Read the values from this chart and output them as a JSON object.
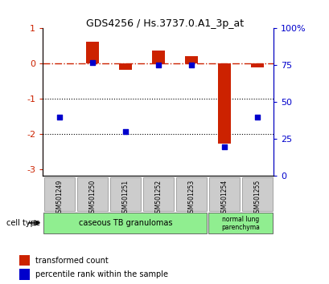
{
  "title": "GDS4256 / Hs.3737.0.A1_3p_at",
  "samples": [
    "GSM501249",
    "GSM501250",
    "GSM501251",
    "GSM501252",
    "GSM501253",
    "GSM501254",
    "GSM501255"
  ],
  "red_values": [
    0.0,
    0.62,
    -0.18,
    0.38,
    0.22,
    -2.28,
    -0.1
  ],
  "blue_values": [
    40,
    77,
    30,
    75,
    75,
    20,
    40
  ],
  "ylim_left": [
    -3.2,
    1.0
  ],
  "ylim_right": [
    0,
    100
  ],
  "left_ticks": [
    1,
    0,
    -1,
    -2,
    -3
  ],
  "right_ticks": [
    100,
    75,
    50,
    25,
    0
  ],
  "right_tick_labels": [
    "100%",
    "75",
    "50",
    "25",
    "0"
  ],
  "dotted_lines": [
    -1,
    -2
  ],
  "bar_color": "#cc2200",
  "dot_color": "#0000cc",
  "hline_color": "#cc2200",
  "background_color": "#ffffff",
  "plot_bg": "#ffffff",
  "legend_red": "transformed count",
  "legend_blue": "percentile rank within the sample",
  "bar_width": 0.4,
  "ct1_label": "caseous TB granulomas",
  "ct2_label": "normal lung\nparenchyma",
  "ct_color": "#90ee90",
  "sample_box_color": "#cccccc",
  "celllabel": "cell type"
}
